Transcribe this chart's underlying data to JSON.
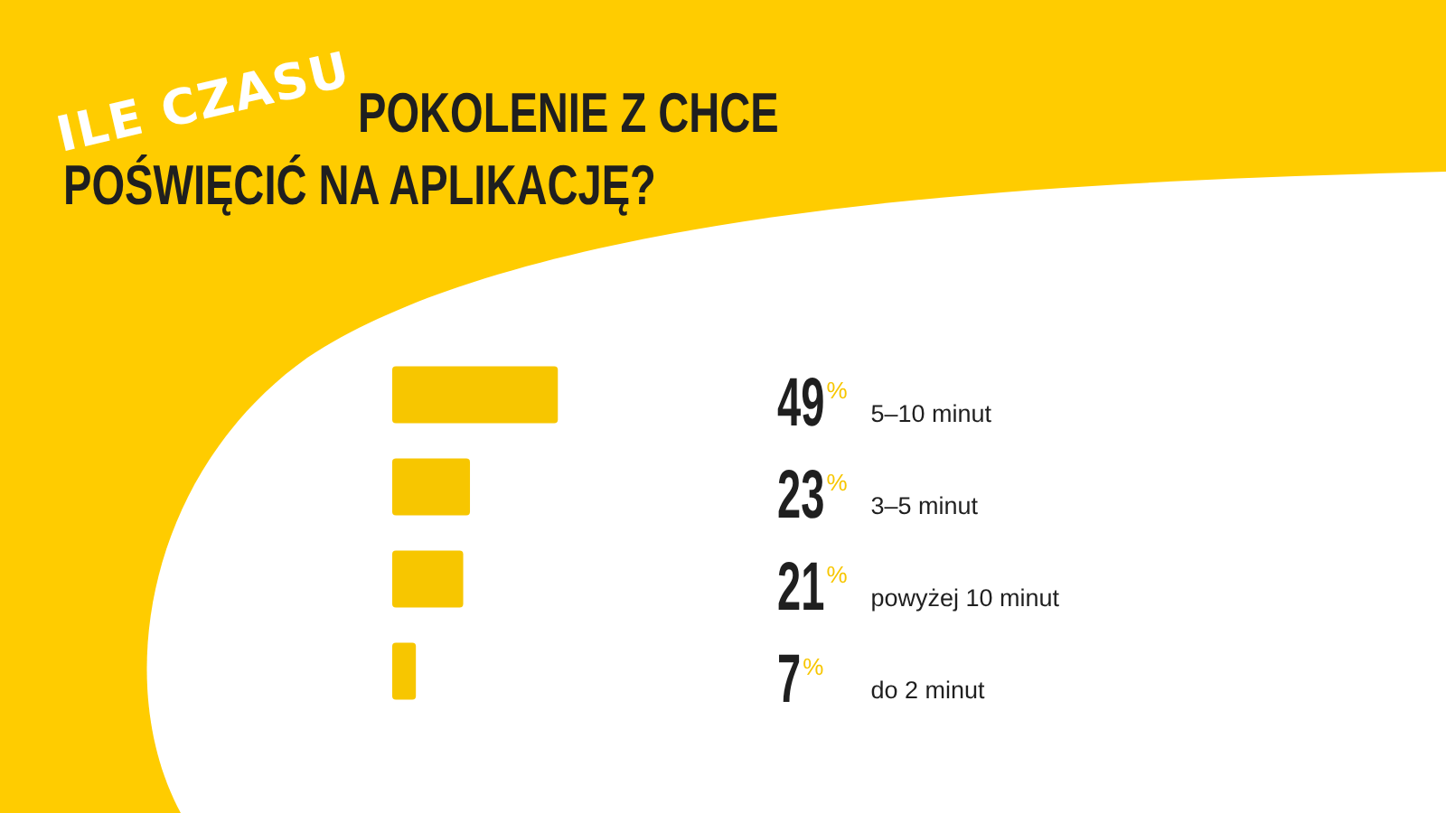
{
  "chart_data": {
    "type": "bar",
    "orientation": "horizontal",
    "title": "ILE CZASU",
    "subtitle": "POKOLENIE Z CHCE POŚWIĘCIĆ NA APLIKACJĘ?",
    "categories": [
      "5–10 minut",
      "3–5 minut",
      "powyżej 10 minut",
      "do 2 minut"
    ],
    "values": [
      49,
      23,
      21,
      7
    ],
    "value_labels": [
      "49%",
      "23%",
      "21%",
      "7%"
    ],
    "color": "#f7c600",
    "tick_labels": "y"
  }
}
